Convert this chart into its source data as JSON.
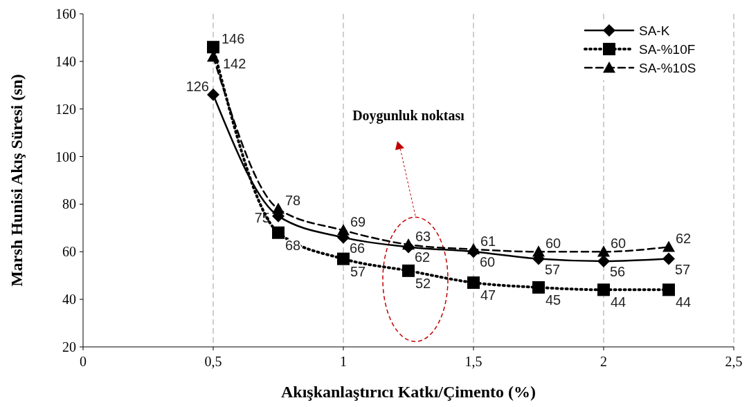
{
  "chart_data": {
    "type": "line",
    "xlabel": "Akışkanlaştırıcı Katkı/Çimento (%)",
    "ylabel": "Marsh Hunisi Akış Süresi (sn)",
    "x": [
      0.5,
      0.75,
      1,
      1.25,
      1.5,
      1.75,
      2,
      2.25
    ],
    "series": [
      {
        "name": "SA-K",
        "color": "#000000",
        "marker": "diamond",
        "line_style": "solid",
        "values": [
          126,
          75,
          66,
          62,
          60,
          57,
          56,
          57
        ]
      },
      {
        "name": "SA-%10F",
        "color": "#000000",
        "marker": "square",
        "line_style": "dotted",
        "values": [
          146,
          68,
          57,
          52,
          47,
          45,
          44,
          44
        ]
      },
      {
        "name": "SA-%10S",
        "color": "#000000",
        "marker": "triangle",
        "line_style": "dashed",
        "values": [
          142,
          78,
          69,
          63,
          61,
          60,
          60,
          62
        ]
      }
    ],
    "xlim": [
      0,
      2.5
    ],
    "ylim": [
      20,
      160
    ],
    "xticks": [
      0,
      {
        "value": 0.5,
        "label": "0,5"
      },
      1,
      {
        "value": 1.5,
        "label": "1,5"
      },
      2,
      {
        "value": 2.5,
        "label": "2,5"
      }
    ],
    "yticks": [
      20,
      40,
      60,
      80,
      100,
      120,
      140,
      160
    ],
    "grid": "x",
    "legend": "top right",
    "data_labels": true,
    "annotations": [
      "Doygunluk noktası"
    ]
  }
}
